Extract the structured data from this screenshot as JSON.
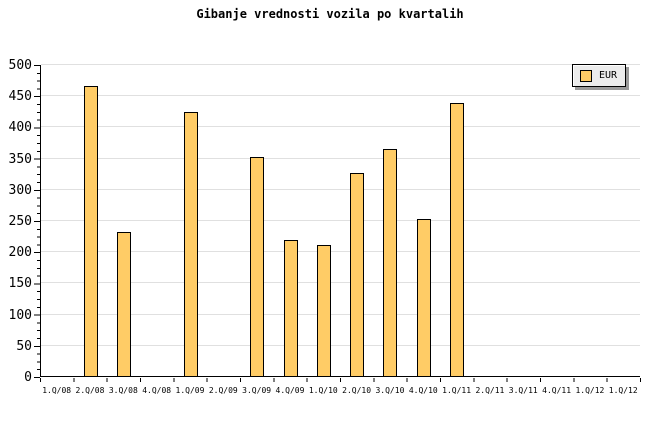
{
  "title": "Gibanje vrednosti vozila po kvartalih",
  "legend": {
    "label": "EUR",
    "swatch_color": "#ffcc66",
    "position": "top-right"
  },
  "colors": {
    "background": "#ffffff",
    "bar_fill": "#ffcc66",
    "bar_border": "#000000",
    "gridline": "#e0e0e0",
    "axis": "#000000",
    "text": "#000000",
    "legend_bg": "#ececec",
    "legend_shadow": "#9a9a9a"
  },
  "chart_data": {
    "type": "bar",
    "title": "Gibanje vrednosti vozila po kvartalih",
    "xlabel": "",
    "ylabel": "",
    "categories": [
      "1.Q/08",
      "2.Q/08",
      "3.Q/08",
      "4.Q/08",
      "1.Q/09",
      "2.Q/09",
      "3.Q/09",
      "4.Q/09",
      "1.Q/10",
      "2.Q/10",
      "3.Q/10",
      "4.Q/10",
      "1.Q/11",
      "2.Q/11",
      "3.Q/11",
      "4.Q/11",
      "1.Q/12",
      "1.Q/12"
    ],
    "series": [
      {
        "name": "EUR",
        "values": [
          null,
          465,
          230,
          null,
          423,
          null,
          351,
          218,
          210,
          325,
          364,
          252,
          438,
          null,
          null,
          null,
          null,
          null
        ]
      }
    ],
    "ylim": [
      0,
      500
    ],
    "ytick_step": 50,
    "yticks": [
      0,
      50,
      100,
      150,
      200,
      250,
      300,
      350,
      400,
      450,
      500
    ],
    "y_minor_tick_step": 12.5,
    "grid": "horizontal",
    "legend_position": "top-right"
  }
}
